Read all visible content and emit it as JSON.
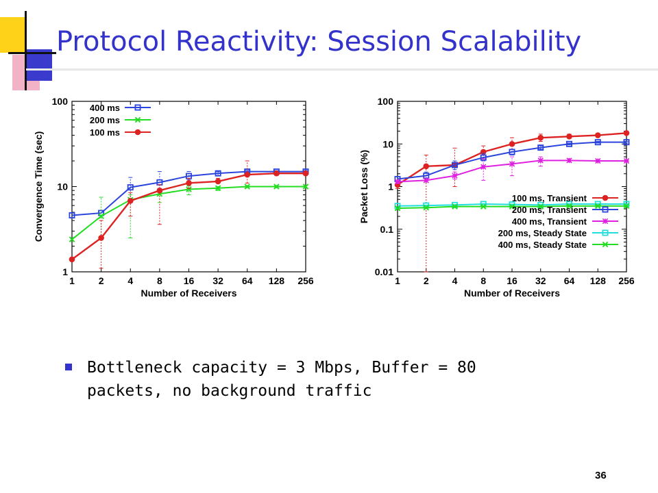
{
  "slide": {
    "title": "Protocol Reactivity: Session Scalability",
    "bullet": "Bottleneck capacity = 3 Mbps, Buffer = 80 packets, no background traffic",
    "page_number": "36"
  },
  "chart_data": [
    {
      "type": "line",
      "title": "",
      "xlabel": "Number of Receivers",
      "ylabel": "Convergence Time (sec)",
      "x": [
        1,
        2,
        4,
        8,
        16,
        32,
        64,
        128,
        256
      ],
      "x_scale": "log2",
      "y_scale": "log10",
      "ylim": [
        1,
        100
      ],
      "yticks": [
        "1",
        "10",
        "100"
      ],
      "grid": false,
      "legend_position": "top-left",
      "series": [
        {
          "name": "400 ms",
          "color": "#2a44dd",
          "marker": "square",
          "values": [
            4.6,
            4.9,
            9.8,
            11.2,
            13.3,
            14.3,
            15.0,
            15.0,
            15.0
          ],
          "err_low": [
            4.6,
            4.9,
            7.0,
            9.5,
            12.0,
            13.5,
            14.5,
            14.6,
            14.6
          ],
          "err_high": [
            4.6,
            4.9,
            12.8,
            15.0,
            15.0,
            15.0,
            15.5,
            15.4,
            15.4
          ]
        },
        {
          "name": "200 ms",
          "color": "#22dd22",
          "marker": "x",
          "values": [
            2.4,
            4.5,
            7.0,
            8.2,
            9.3,
            9.6,
            10.0,
            10.0,
            10.0
          ],
          "err_low": [
            2.4,
            2.5,
            2.5,
            6.5,
            8.0,
            9.0,
            9.7,
            9.7,
            9.7
          ],
          "err_high": [
            2.4,
            7.5,
            8.0,
            9.5,
            10.2,
            10.0,
            10.3,
            10.3,
            10.3
          ],
          "style": "dotted"
        },
        {
          "name": "100 ms",
          "color": "#dd2222",
          "marker": "circle",
          "values": [
            1.4,
            2.5,
            6.8,
            9.0,
            11.0,
            11.5,
            13.8,
            14.3,
            14.3
          ],
          "err_low": [
            1.4,
            1.1,
            4.5,
            3.6,
            9.5,
            11.0,
            11.0,
            13.5,
            13.5
          ],
          "err_high": [
            1.4,
            4.0,
            8.5,
            10.5,
            12.5,
            12.5,
            20.0,
            15.0,
            15.0
          ]
        }
      ]
    },
    {
      "type": "line",
      "title": "",
      "xlabel": "Number of Receivers",
      "ylabel": "Packet Loss (%)",
      "x": [
        1,
        2,
        4,
        8,
        16,
        32,
        64,
        128,
        256
      ],
      "x_scale": "log2",
      "y_scale": "log10",
      "ylim": [
        0.01,
        100
      ],
      "yticks": [
        "0.01",
        "0.1",
        "1",
        "10",
        "100"
      ],
      "grid": false,
      "legend_position": "bottom-right",
      "series": [
        {
          "name": "100 ms, Transient",
          "color": "#dd2222",
          "marker": "circle",
          "values": [
            1.1,
            3.0,
            3.2,
            6.5,
            10.0,
            14.0,
            15.0,
            16.0,
            18.0
          ],
          "err_low": [
            0.9,
            0.01,
            1.0,
            4.5,
            7.5,
            11.5,
            13.5,
            14.5,
            16.5
          ],
          "err_high": [
            1.3,
            5.5,
            8.0,
            9.0,
            14.0,
            17.0,
            17.0,
            17.5,
            20.0
          ]
        },
        {
          "name": "200 ms, Transient",
          "color": "#2a44dd",
          "marker": "square",
          "values": [
            1.5,
            1.8,
            3.2,
            4.8,
            6.5,
            8.2,
            10.0,
            11.0,
            11.0
          ],
          "err_low": [
            1.5,
            1.5,
            2.5,
            4.0,
            5.5,
            7.5,
            9.5,
            10.5,
            10.5
          ],
          "err_high": [
            1.5,
            2.2,
            4.0,
            6.0,
            7.5,
            9.0,
            10.5,
            11.5,
            11.5
          ]
        },
        {
          "name": "400 ms, Transient",
          "color": "#e020e0",
          "marker": "star",
          "values": [
            1.3,
            1.4,
            1.8,
            2.9,
            3.4,
            4.1,
            4.1,
            4.0,
            4.0
          ],
          "err_low": [
            1.3,
            1.3,
            1.5,
            1.4,
            1.8,
            3.0,
            3.8,
            3.8,
            3.8
          ],
          "err_high": [
            1.3,
            1.5,
            2.2,
            4.5,
            5.0,
            5.0,
            4.5,
            4.2,
            4.2
          ]
        },
        {
          "name": "200 ms, Steady State",
          "color": "#22dddd",
          "marker": "square",
          "values": [
            0.35,
            0.36,
            0.37,
            0.39,
            0.38,
            0.37,
            0.39,
            0.39,
            0.39
          ],
          "err_low": [
            0.35,
            0.35,
            0.36,
            0.38,
            0.37,
            0.36,
            0.38,
            0.38,
            0.38
          ],
          "err_high": [
            0.35,
            0.37,
            0.38,
            0.4,
            0.39,
            0.38,
            0.4,
            0.4,
            0.4
          ]
        },
        {
          "name": "400 ms, Steady State",
          "color": "#22dd22",
          "marker": "x",
          "values": [
            0.31,
            0.32,
            0.34,
            0.34,
            0.34,
            0.34,
            0.35,
            0.35,
            0.35
          ],
          "err_low": [
            0.31,
            0.31,
            0.33,
            0.33,
            0.33,
            0.33,
            0.34,
            0.34,
            0.34
          ],
          "err_high": [
            0.31,
            0.33,
            0.35,
            0.35,
            0.35,
            0.35,
            0.36,
            0.36,
            0.36
          ]
        }
      ]
    }
  ]
}
